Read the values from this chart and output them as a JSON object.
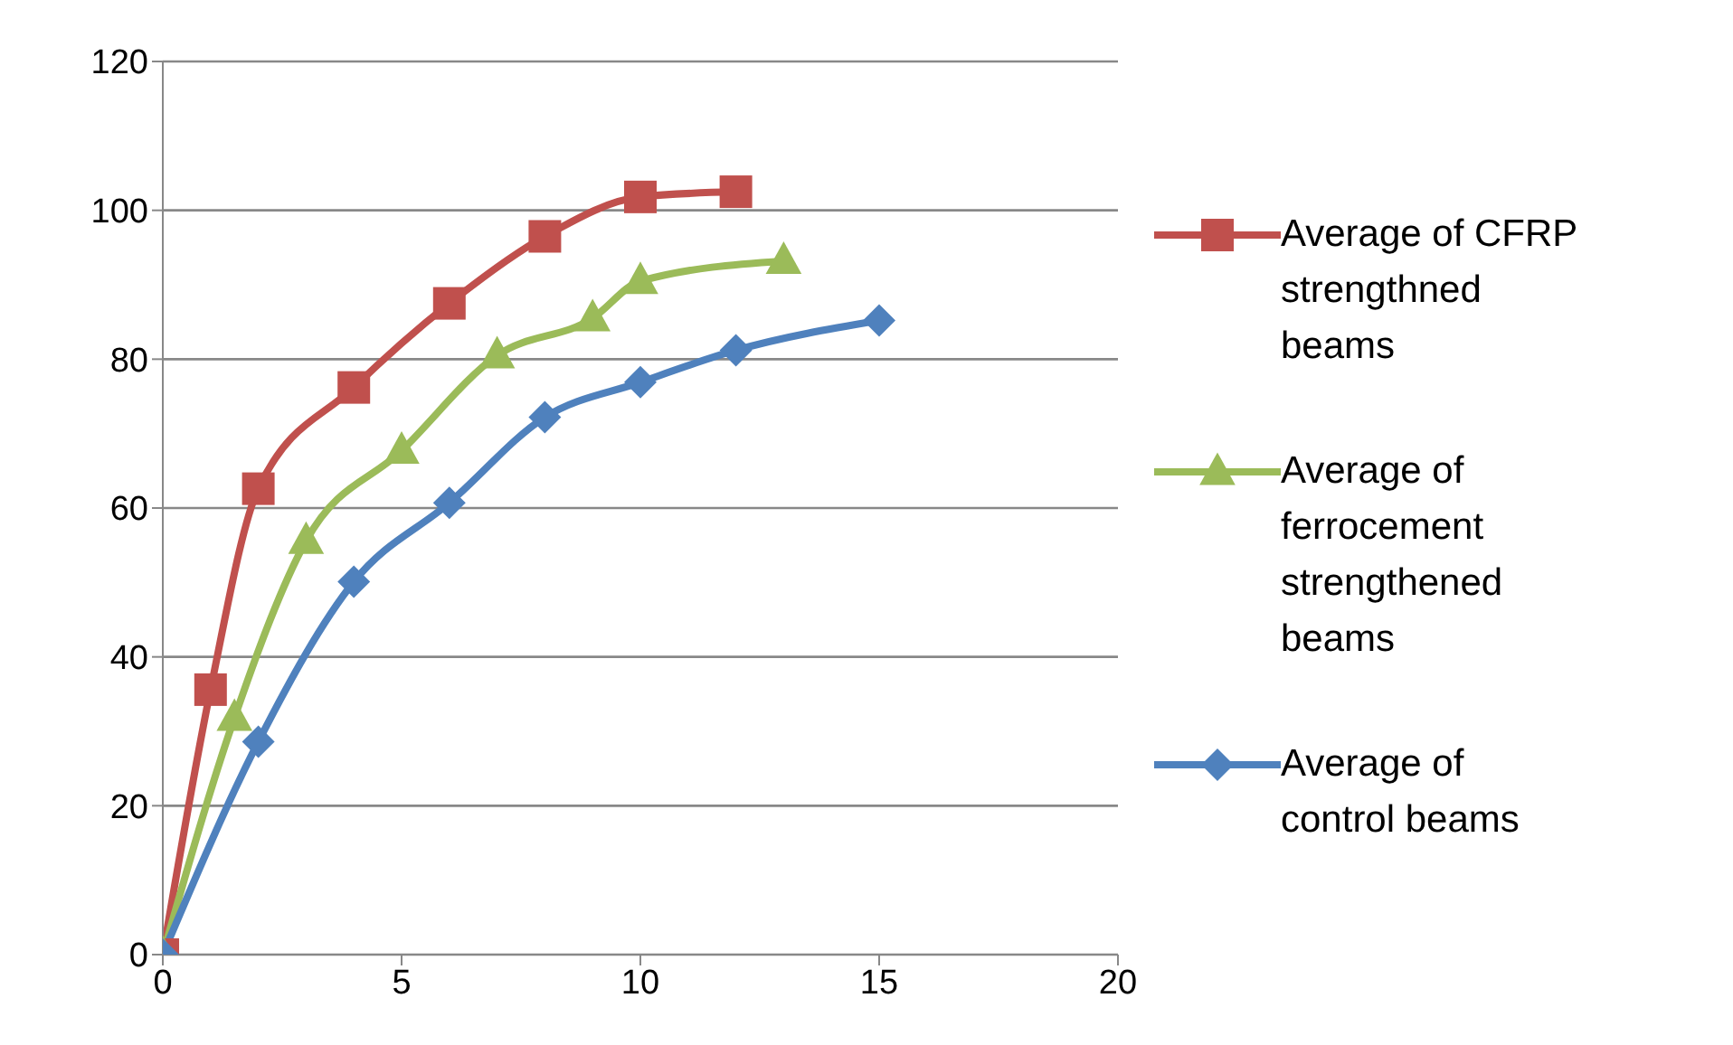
{
  "chart_data": {
    "type": "line",
    "legend": "right",
    "grid": "y",
    "xlim": [
      0,
      20
    ],
    "xticks": [
      0,
      5,
      10,
      15,
      20
    ],
    "ylim": [
      0,
      120
    ],
    "yticks": [
      0,
      20,
      40,
      60,
      80,
      100,
      120
    ],
    "series": [
      {
        "name": "Average of CFRP strengthned beams",
        "color": "#c0504d",
        "marker": "square",
        "x": [
          0,
          1,
          2,
          4,
          6,
          8,
          10,
          12
        ],
        "values": [
          0,
          35.6,
          62.6,
          76.2,
          87.5,
          96.5,
          101.8,
          102.5
        ]
      },
      {
        "name": "Average of ferrocement strengthened beams",
        "color": "#9bbb59",
        "marker": "triangle",
        "x": [
          0,
          1.5,
          3,
          5,
          7,
          9,
          10,
          13
        ],
        "values": [
          0,
          31.8,
          55.6,
          67.7,
          80.5,
          85.5,
          90.5,
          93.2
        ]
      },
      {
        "name": "Average of control beams",
        "color": "#4f81bd",
        "marker": "diamond",
        "x": [
          0,
          2,
          4,
          6,
          8,
          10,
          12,
          15
        ],
        "values": [
          0,
          28.6,
          50.1,
          60.7,
          72.2,
          76.9,
          81.2,
          85.2
        ]
      }
    ]
  }
}
